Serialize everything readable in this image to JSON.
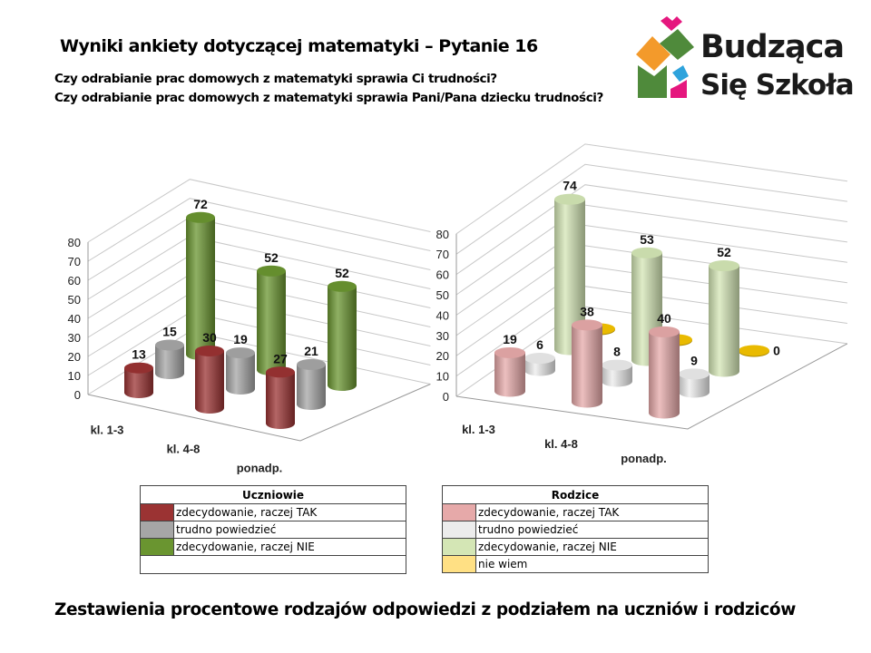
{
  "title": "Wyniki ankiety dotyczącej matematyki – Pytanie 16",
  "questions": [
    "Czy odrabianie prac domowych z matematyki sprawia Ci trudności?",
    "Czy odrabianie prac domowych z matematyki sprawia Pani/Pana dziecku trudności?"
  ],
  "logo": {
    "line1": "Budząca",
    "line2": "Się Szkoła"
  },
  "caption": "Zestawienia procentowe rodzajów odpowiedzi z podziałem na uczniów i rodziców",
  "chart_data": [
    {
      "type": "bar",
      "style": "3d-cylinder",
      "categories": [
        "kl. 1-3",
        "kl. 4-8",
        "ponadp."
      ],
      "ylim": [
        0,
        80
      ],
      "yticks": [
        0,
        10,
        20,
        30,
        40,
        50,
        60,
        70,
        80
      ],
      "grid": true,
      "legend_title": "Uczniowie",
      "series": [
        {
          "name": "zdecydowanie, raczej TAK",
          "values": [
            13,
            30,
            27
          ],
          "color": "#9b3333"
        },
        {
          "name": "trudno powiedzieć",
          "values": [
            15,
            19,
            21
          ],
          "color": "#a6a6a6"
        },
        {
          "name": "zdecydowanie, raczej NIE",
          "values": [
            72,
            52,
            52
          ],
          "color": "#6a9530"
        }
      ]
    },
    {
      "type": "bar",
      "style": "3d-cylinder",
      "categories": [
        "kl. 1-3",
        "kl. 4-8",
        "ponadp."
      ],
      "ylim": [
        0,
        80
      ],
      "yticks": [
        0,
        10,
        20,
        30,
        40,
        50,
        60,
        70,
        80
      ],
      "grid": true,
      "legend_title": "Rodzice",
      "series": [
        {
          "name": "zdecydowanie, raczej TAK",
          "values": [
            19,
            38,
            40
          ],
          "color": "#e6a9a9"
        },
        {
          "name": "trudno powiedzieć",
          "values": [
            6,
            8,
            9
          ],
          "color": "#ececec"
        },
        {
          "name": "zdecydowanie, raczej NIE",
          "values": [
            74,
            53,
            52
          ],
          "color": "#d4e6b5"
        },
        {
          "name": "nie wiem",
          "values": [
            0,
            0,
            0
          ],
          "color": "#f5c400",
          "legend_color": "#ffe084",
          "labels_shown": [
            false,
            false,
            true
          ]
        }
      ]
    }
  ]
}
